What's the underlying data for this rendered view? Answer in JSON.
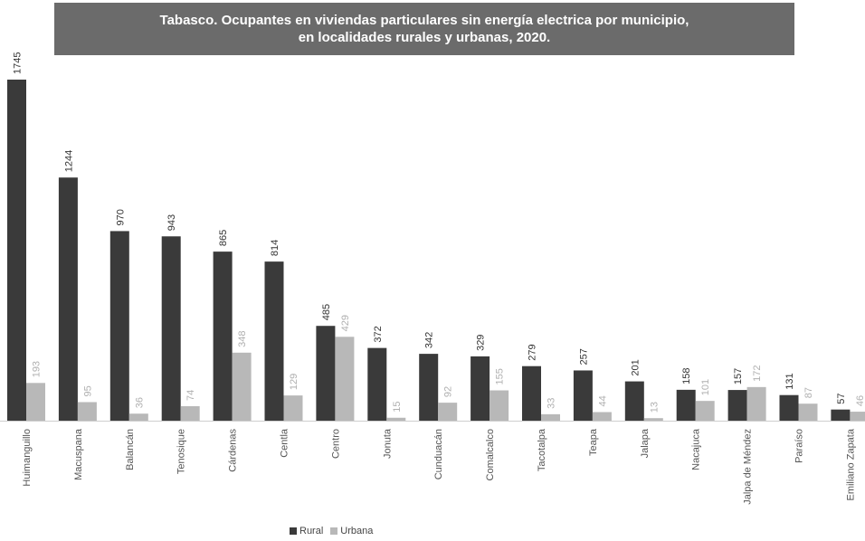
{
  "chart_data": {
    "type": "bar",
    "title_line1": "Tabasco. Ocupantes en viviendas particulares sin energía electrica por municipio,",
    "title_line2": "en localidades rurales y urbanas, 2020.",
    "categories": [
      "Huimanguillo",
      "Macuspana",
      "Balancán",
      "Tenosique",
      "Cárdenas",
      "Centla",
      "Centro",
      "Jonuta",
      "Cunduacán",
      "Comalcalco",
      "Tacotalpa",
      "Teapa",
      "Jalapa",
      "Nacajuca",
      "Jalpa de Méndez",
      "Paraíso",
      "Emiliano Zapata"
    ],
    "series": [
      {
        "name": "Rural",
        "color": "#3a3a3a",
        "values": [
          1745,
          1244,
          970,
          943,
          865,
          814,
          485,
          372,
          342,
          329,
          279,
          257,
          201,
          158,
          157,
          131,
          57
        ]
      },
      {
        "name": "Urbana",
        "color": "#b8b8b8",
        "values": [
          193,
          95,
          36,
          74,
          348,
          129,
          429,
          15,
          92,
          155,
          33,
          44,
          13,
          101,
          172,
          87,
          46
        ]
      }
    ],
    "ylim": [
      0,
      1800
    ],
    "legend_position": "bottom"
  }
}
